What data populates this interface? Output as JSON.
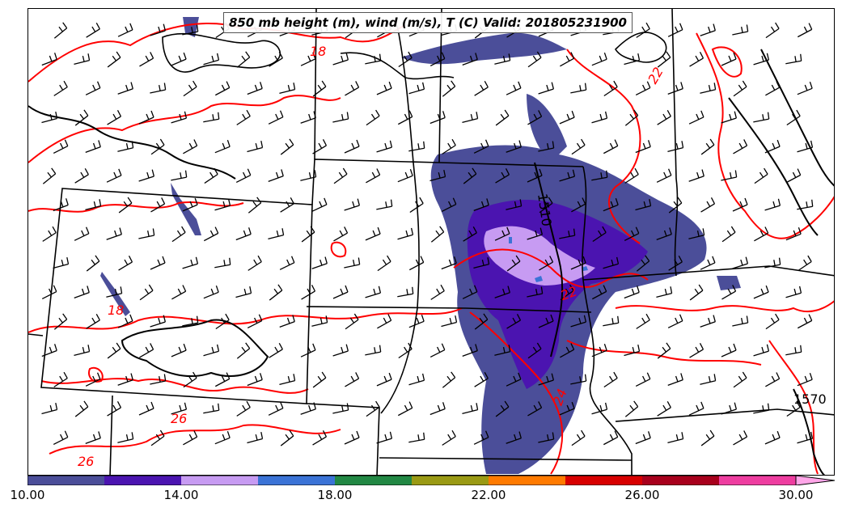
{
  "title": "850 mb height (m), wind (m/s), T (C) Valid: 201805231900",
  "contour_labels": {
    "height": [
      "1510",
      "1570"
    ],
    "temperature": [
      "18",
      "18",
      "22",
      "22",
      "26",
      "26",
      "24"
    ]
  },
  "colorbar": {
    "ticks": [
      "10.00",
      "14.00",
      "18.00",
      "22.00",
      "26.00",
      "30.00"
    ],
    "colors": [
      "#4b4e99",
      "#4b14b0",
      "#c79bf2",
      "#3b73d6",
      "#228844",
      "#9a9a14",
      "#ff7a00",
      "#d80000",
      "#a8001c",
      "#ee3da0",
      "#ffa6e8"
    ]
  },
  "styles": {
    "temp_contour_color": "#ff0000",
    "height_contour_color": "#000000",
    "wind_barb_color": "#000000"
  }
}
